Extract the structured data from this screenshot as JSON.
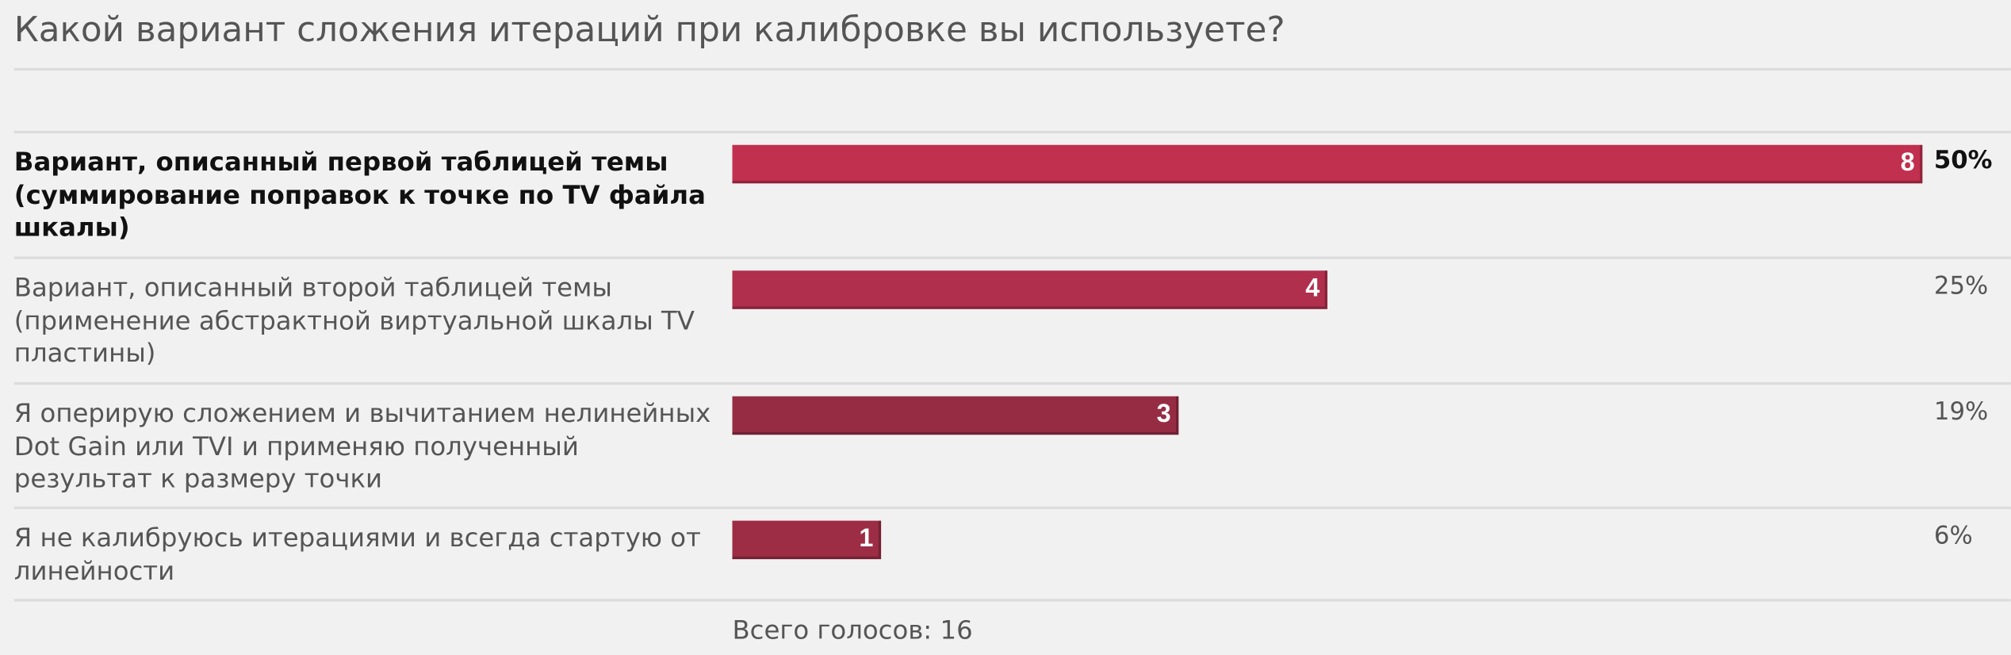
{
  "chart_data": {
    "type": "hbar",
    "title": "Какой вариант сложения итераций при калибровке вы используете?",
    "categories": [
      "Вариант, описанный первой таблицей темы (суммирование поправок к точке по TV файла шкалы)",
      "Вариант, описанный второй таблицей темы (применение абстрактной виртуальной шкалы TV пластины)",
      "Я оперирую сложением и вычитанием нелинейных Dot Gain или TVI и применяю полученный результат к размеру точки",
      "Я не калибруюсь итерациями и всегда стартую от линейности"
    ],
    "values": [
      8,
      4,
      3,
      1
    ],
    "percent_labels": [
      "50%",
      "25%",
      "19%",
      "6%"
    ],
    "colors": [
      "#c1304e",
      "#b02f4d",
      "#962c44",
      "#9c2d45"
    ],
    "xlim": [
      0,
      8
    ],
    "highlight": 0,
    "footer": "Всего голосов: 16"
  }
}
